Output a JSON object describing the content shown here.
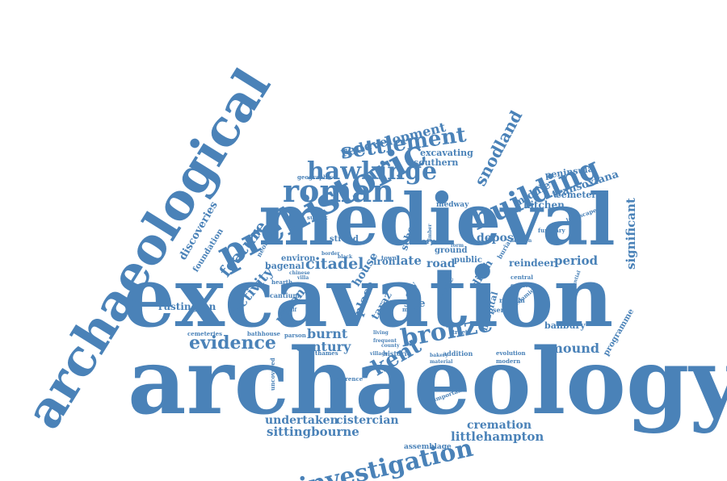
{
  "palette": {
    "word_color": "#4a82b8",
    "background": "#ffffff"
  },
  "words": [
    "archaeology",
    "excavation",
    "medieval",
    "archaeological",
    "prehistoric",
    "investigation",
    "roman",
    "building",
    "hawkinge",
    "settlement",
    "bronze",
    "evidence",
    "kent",
    "feature",
    "redevelopment",
    "snodland",
    "citadel",
    "activity",
    "century",
    "burnt",
    "sittingbourne",
    "littlehampton",
    "undertaken",
    "cistercian",
    "cremation",
    "significant",
    "mound",
    "period",
    "deposit",
    "discoveries",
    "transoxiana",
    "excavating",
    "southern",
    "middle",
    "kitchen",
    "cemetery",
    "peninsula",
    "urban",
    "place",
    "house",
    "late",
    "road",
    "site",
    "ditch",
    "hospital",
    "reindeer",
    "banbury",
    "programme",
    "rustington",
    "foundation",
    "neolithic",
    "environ",
    "bagenal",
    "iron",
    "ground",
    "public",
    "school",
    "strood",
    "medway",
    "geographic",
    "sussex",
    "cantium",
    "hearth",
    "cemeteries",
    "bathhouse",
    "parson",
    "thames",
    "lawrence",
    "uncovered",
    "assemblage",
    "historic",
    "addition",
    "evolution",
    "modern",
    "important",
    "friary",
    "town",
    "burial",
    "funerary",
    "landscape",
    "central",
    "earliest",
    "remain",
    "series",
    "islamic",
    "substantial",
    "division",
    "taraz",
    "city",
    "castle",
    "chinese",
    "villa",
    "behalf",
    "living",
    "frequent",
    "county",
    "street",
    "bakery",
    "material",
    "timber",
    "village",
    "form",
    "border",
    "mary",
    "black"
  ]
}
